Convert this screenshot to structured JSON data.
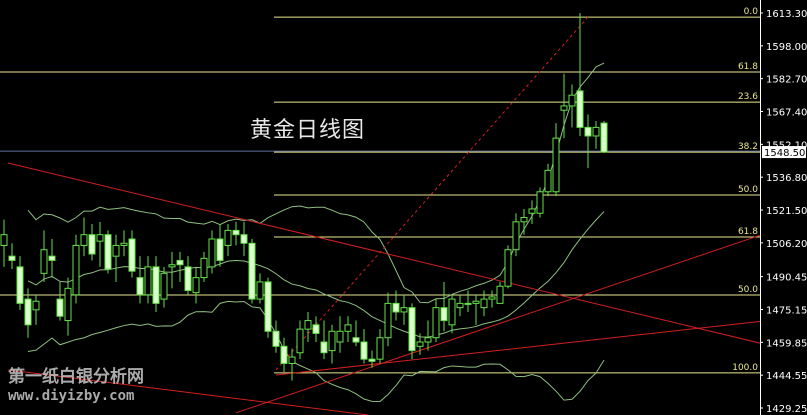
{
  "chart_data": {
    "type": "candlestick",
    "title": "黄金日线图",
    "ylim": [
      1429.25,
      1613.3
    ],
    "y_ticks": [
      "1613.30",
      "1598.00",
      "1582.70",
      "1567.40",
      "1552.10",
      "1536.80",
      "1521.50",
      "1506.20",
      "1490.45",
      "1475.15",
      "1459.85",
      "1444.55",
      "1429.25"
    ],
    "current_price": "1548.50",
    "grid": false,
    "colors": {
      "background": "#000000",
      "candle": "#66e04a",
      "bear_fill": "#d8ffc8",
      "band": "#8fbf80",
      "fib": "#e8e890",
      "trend": "#d02020",
      "axis": "#ffffff",
      "price_line": "#6070a0"
    },
    "ohlc": [
      [
        1505,
        1517,
        1495,
        1510
      ],
      [
        1500,
        1506,
        1494,
        1498
      ],
      [
        1495,
        1500,
        1475,
        1478
      ],
      [
        1480,
        1485,
        1462,
        1468
      ],
      [
        1475,
        1482,
        1468,
        1479
      ],
      [
        1492,
        1512,
        1488,
        1503
      ],
      [
        1500,
        1508,
        1490,
        1498
      ],
      [
        1480,
        1488,
        1470,
        1472
      ],
      [
        1470,
        1490,
        1463,
        1485
      ],
      [
        1482,
        1510,
        1478,
        1505
      ],
      [
        1505,
        1518,
        1500,
        1510
      ],
      [
        1510,
        1515,
        1498,
        1501
      ],
      [
        1507,
        1516,
        1495,
        1510
      ],
      [
        1510,
        1512,
        1492,
        1494
      ],
      [
        1500,
        1510,
        1488,
        1505
      ],
      [
        1505,
        1512,
        1500,
        1506
      ],
      [
        1508,
        1512,
        1490,
        1493
      ],
      [
        1490,
        1500,
        1478,
        1482
      ],
      [
        1482,
        1500,
        1478,
        1495
      ],
      [
        1495,
        1500,
        1474,
        1478
      ],
      [
        1480,
        1495,
        1476,
        1492
      ],
      [
        1495,
        1502,
        1485,
        1496
      ],
      [
        1498,
        1502,
        1488,
        1496
      ],
      [
        1495,
        1500,
        1482,
        1484
      ],
      [
        1483,
        1495,
        1478,
        1490
      ],
      [
        1490,
        1502,
        1488,
        1499
      ],
      [
        1495,
        1512,
        1492,
        1508
      ],
      [
        1508,
        1515,
        1495,
        1498
      ],
      [
        1505,
        1515,
        1500,
        1512
      ],
      [
        1512,
        1516,
        1505,
        1510
      ],
      [
        1510,
        1516,
        1500,
        1506
      ],
      [
        1506,
        1508,
        1478,
        1480
      ],
      [
        1480,
        1492,
        1478,
        1488
      ],
      [
        1488,
        1490,
        1462,
        1465
      ],
      [
        1465,
        1470,
        1455,
        1458
      ],
      [
        1458,
        1462,
        1446,
        1450
      ],
      [
        1450,
        1457,
        1442,
        1453
      ],
      [
        1455,
        1470,
        1452,
        1466
      ],
      [
        1466,
        1474,
        1460,
        1470
      ],
      [
        1468,
        1472,
        1460,
        1464
      ],
      [
        1460,
        1470,
        1452,
        1455
      ],
      [
        1456,
        1468,
        1450,
        1465
      ],
      [
        1460,
        1472,
        1455,
        1465
      ],
      [
        1465,
        1472,
        1460,
        1468
      ],
      [
        1462,
        1470,
        1458,
        1460
      ],
      [
        1460,
        1466,
        1450,
        1452
      ],
      [
        1452,
        1456,
        1448,
        1451
      ],
      [
        1452,
        1466,
        1450,
        1462
      ],
      [
        1462,
        1483,
        1458,
        1478
      ],
      [
        1478,
        1484,
        1470,
        1474
      ],
      [
        1474,
        1482,
        1468,
        1476
      ],
      [
        1476,
        1478,
        1452,
        1456
      ],
      [
        1458,
        1464,
        1454,
        1460
      ],
      [
        1460,
        1470,
        1456,
        1462
      ],
      [
        1462,
        1480,
        1460,
        1476
      ],
      [
        1476,
        1488,
        1465,
        1470
      ],
      [
        1468,
        1482,
        1464,
        1480
      ],
      [
        1476,
        1482,
        1472,
        1478
      ],
      [
        1478,
        1484,
        1474,
        1478
      ],
      [
        1478,
        1482,
        1468,
        1479
      ],
      [
        1476,
        1484,
        1472,
        1480
      ],
      [
        1480,
        1484,
        1476,
        1481
      ],
      [
        1478,
        1488,
        1478,
        1486
      ],
      [
        1486,
        1505,
        1485,
        1503
      ],
      [
        1503,
        1520,
        1500,
        1516
      ],
      [
        1516,
        1522,
        1510,
        1518
      ],
      [
        1520,
        1526,
        1515,
        1522
      ],
      [
        1520,
        1532,
        1518,
        1530
      ],
      [
        1530,
        1543,
        1528,
        1540
      ],
      [
        1530,
        1562,
        1528,
        1555
      ],
      [
        1568,
        1585,
        1555,
        1570
      ],
      [
        1570,
        1580,
        1560,
        1575
      ],
      [
        1577,
        1613.3,
        1556,
        1560
      ],
      [
        1560,
        1566,
        1541,
        1556
      ],
      [
        1556,
        1563,
        1550,
        1560
      ],
      [
        1562,
        1563,
        1548,
        1548.5
      ]
    ],
    "fib_levels": [
      {
        "label": "0.0",
        "price": 1611.4,
        "from_bar": 34
      },
      {
        "label": "61.8",
        "price": 1585.8,
        "from_bar": 0
      },
      {
        "label": "23.6",
        "price": 1571.8,
        "from_bar": 34
      },
      {
        "label": "38.2",
        "price": 1548.5,
        "from_bar": 34
      },
      {
        "label": "50.0",
        "price": 1528.5,
        "from_bar": 34
      },
      {
        "label": "61.8",
        "price": 1508.9,
        "from_bar": 34
      },
      {
        "label": "50.0",
        "price": 1481.9,
        "from_bar": 0
      },
      {
        "label": "100.0",
        "price": 1445.6,
        "from_bar": 34
      }
    ],
    "trendlines": [
      {
        "from": [
          0.5,
          1543.4
        ],
        "to": [
          95.5,
          1458.6
        ],
        "style": "solid"
      },
      {
        "from": [
          0.5,
          1447.0
        ],
        "to": [
          45.5,
          1426.0
        ],
        "style": "solid"
      },
      {
        "from": [
          29.0,
          1427.0
        ],
        "to": [
          95.5,
          1511.0
        ],
        "style": "solid"
      },
      {
        "from": [
          34.0,
          1444.6
        ],
        "to": [
          95.5,
          1470.0
        ],
        "style": "solid"
      },
      {
        "from": [
          34.0,
          1447.0
        ],
        "to": [
          73.0,
          1611.4
        ],
        "style": "dashed"
      }
    ],
    "bollinger_period": 20
  },
  "watermark": {
    "line1": "第一纸白银分析网",
    "line2": "www.diyizby.com"
  }
}
